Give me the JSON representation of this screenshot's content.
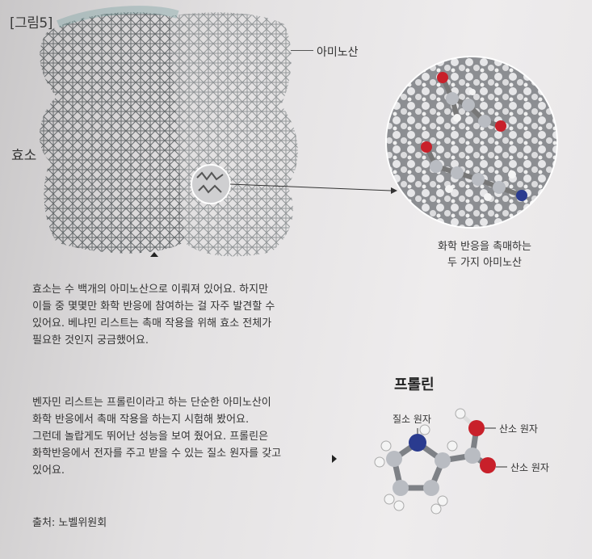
{
  "figure": {
    "label": "[그림5]",
    "enzyme_label": "효소",
    "amino_acid_label": "아미노산",
    "zoom_caption_line1": "화학 반응을 촉매하는",
    "zoom_caption_line2": "두 가지 아미노산"
  },
  "paragraph1": {
    "line1": "효소는 수 백개의 아미노산으로 이뤄져 있어요. 하지만",
    "line2": "이들 중 몇몇만 화학 반응에 참여하는 걸 자주 발견할 수",
    "line3": "있어요. 베냐민 리스트는 촉매 작용을 위해 효소 전체가",
    "line4": "필요한 것인지 궁금했어요."
  },
  "paragraph2": {
    "line1": "벤자민 리스트는 프롤린이라고 하는 단순한 아미노산이",
    "line2": "화학 반응에서 촉매 작용을 하는지 시험해 봤어요.",
    "line3": "그런데 놀랍게도 뛰어난 성능을 보여 줬어요. 프롤린은",
    "line4": "화학반응에서 전자를 주고 받을 수 있는 질소 원자를 갖고",
    "line5": "있어요."
  },
  "proline": {
    "title": "프롤린",
    "nitrogen_label": "질소 원자",
    "oxygen_label_1": "산소 원자",
    "oxygen_label_2": "산소 원자"
  },
  "source": "출처: 노벨위원회",
  "colors": {
    "carbon": "#b9bcc2",
    "nitrogen": "#2a3b8f",
    "oxygen": "#c8202a",
    "hydrogen": "#f4f4f4"
  }
}
